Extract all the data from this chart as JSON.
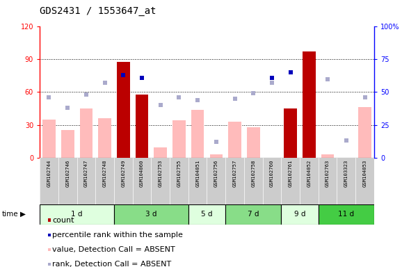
{
  "title": "GDS2431 / 1553647_at",
  "samples": [
    "GSM102744",
    "GSM102746",
    "GSM102747",
    "GSM102748",
    "GSM102749",
    "GSM104060",
    "GSM102753",
    "GSM102755",
    "GSM104051",
    "GSM102756",
    "GSM102757",
    "GSM102758",
    "GSM102760",
    "GSM102761",
    "GSM104052",
    "GSM102763",
    "GSM103323",
    "GSM104053"
  ],
  "time_groups": [
    {
      "label": "1 d",
      "start": 0,
      "end": 4,
      "color": "#dfffdf"
    },
    {
      "label": "3 d",
      "start": 4,
      "end": 8,
      "color": "#88dd88"
    },
    {
      "label": "5 d",
      "start": 8,
      "end": 10,
      "color": "#dfffdf"
    },
    {
      "label": "7 d",
      "start": 10,
      "end": 13,
      "color": "#88dd88"
    },
    {
      "label": "9 d",
      "start": 13,
      "end": 15,
      "color": "#dfffdf"
    },
    {
      "label": "11 d",
      "start": 15,
      "end": 18,
      "color": "#44cc44"
    }
  ],
  "count": [
    0,
    0,
    0,
    0,
    88,
    58,
    0,
    0,
    0,
    0,
    0,
    0,
    0,
    45,
    97,
    0,
    0,
    0
  ],
  "percentile_rank": [
    null,
    null,
    null,
    null,
    63,
    61,
    null,
    null,
    null,
    null,
    null,
    null,
    61,
    65,
    null,
    null,
    null,
    null
  ],
  "value_absent": [
    35,
    25,
    45,
    36,
    null,
    null,
    9,
    34,
    44,
    3,
    33,
    28,
    null,
    null,
    97,
    3,
    null,
    46
  ],
  "rank_absent": [
    46,
    38,
    48,
    57,
    null,
    null,
    40,
    46,
    44,
    12,
    45,
    49,
    57,
    null,
    null,
    60,
    13,
    46
  ],
  "ylim_left": [
    0,
    120
  ],
  "ylim_right": [
    0,
    100
  ],
  "left_ticks": [
    0,
    30,
    60,
    90,
    120
  ],
  "right_ticks": [
    0,
    25,
    50,
    75,
    100
  ],
  "gridlines": [
    30,
    60,
    90
  ],
  "bar_color_count": "#bb0000",
  "bar_color_value": "#ffbbbb",
  "dot_color_percentile": "#0000bb",
  "dot_color_rank": "#aaaacc",
  "bg_color": "#ffffff",
  "plot_bg": "#ffffff",
  "title_fontsize": 10,
  "tick_fontsize": 7,
  "legend_fontsize": 8
}
